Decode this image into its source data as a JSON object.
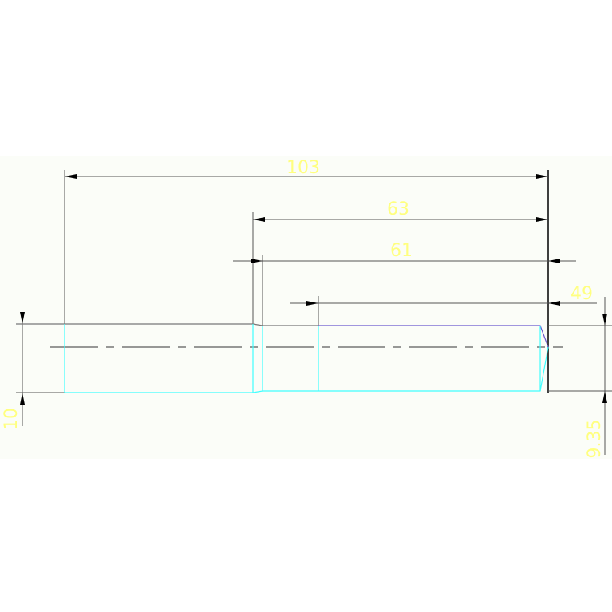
{
  "drawing": {
    "dimensions": {
      "overall_length": "103",
      "length_63": "63",
      "length_61": "61",
      "length_49": "49",
      "diameter_left": "10",
      "diameter_right": "9.35"
    },
    "colors": {
      "dimension_text": "#ffff80",
      "dimension_line": "#555555",
      "outline_cyan": "#40ffff",
      "outline_purple": "#6a5acd",
      "background": "#fbfdf8"
    }
  }
}
